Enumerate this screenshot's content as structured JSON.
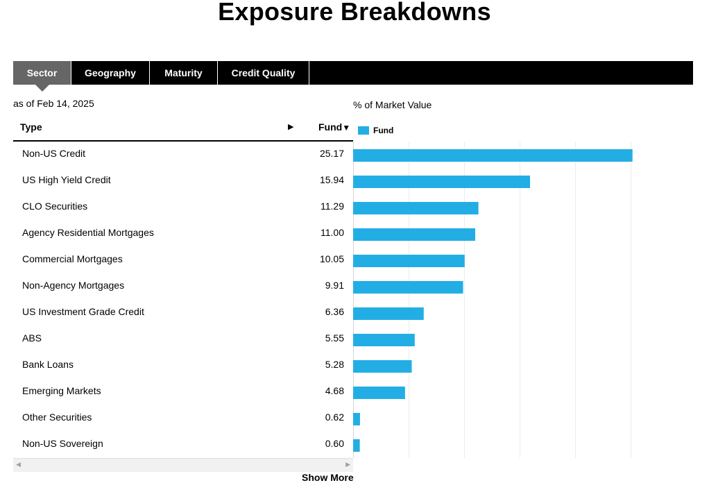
{
  "page": {
    "title": "Exposure Breakdowns"
  },
  "tabs": [
    {
      "label": "Sector",
      "active": true
    },
    {
      "label": "Geography",
      "active": false
    },
    {
      "label": "Maturity",
      "active": false
    },
    {
      "label": "Credit Quality",
      "active": false
    }
  ],
  "as_of": "as of Feb 14, 2025",
  "market_value_label": "% of Market Value",
  "table": {
    "col_type": "Type",
    "col_fund": "Fund",
    "sort_right_icon": "play-arrow-icon",
    "sort_down_icon": "sort-desc-icon"
  },
  "legend": {
    "label": "Fund",
    "color": "#22aee4"
  },
  "chart_data": {
    "type": "bar",
    "orientation": "horizontal",
    "categories": [
      "Non-US Credit",
      "US High Yield Credit",
      "CLO Securities",
      "Agency Residential Mortgages",
      "Commercial Mortgages",
      "Non-Agency Mortgages",
      "US Investment Grade Credit",
      "ABS",
      "Bank Loans",
      "Emerging Markets",
      "Other Securities",
      "Non-US Sovereign"
    ],
    "series": [
      {
        "name": "Fund",
        "values": [
          25.17,
          15.94,
          11.29,
          11.0,
          10.05,
          9.91,
          6.36,
          5.55,
          5.28,
          4.68,
          0.62,
          0.6
        ]
      }
    ],
    "value_labels": [
      "25.17",
      "15.94",
      "11.29",
      "11.00",
      "10.05",
      "9.91",
      "6.36",
      "5.55",
      "5.28",
      "4.68",
      "0.62",
      "0.60"
    ],
    "xlim": [
      0,
      30
    ],
    "grid": true,
    "bar_color": "#22aee4"
  },
  "show_more": "Show More",
  "scroll": {
    "left_icon": "scroll-left-icon",
    "right_icon": "scroll-right-icon"
  }
}
